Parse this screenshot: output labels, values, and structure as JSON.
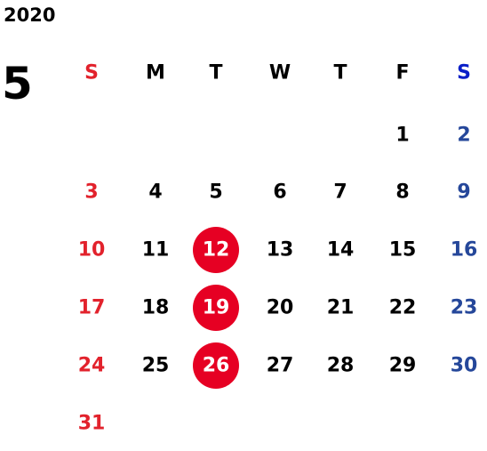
{
  "calendar": {
    "year": "2020",
    "month": "5",
    "weekdays": [
      "S",
      "M",
      "T",
      "W",
      "T",
      "F",
      "S"
    ],
    "sunday_color": "#e2222c",
    "saturday_header_color": "#0a1fc8",
    "saturday_color": "#25479a",
    "weekday_color": "#000000",
    "circle_color": "#e60023",
    "weeks": [
      [
        null,
        null,
        null,
        null,
        null,
        {
          "day": 1
        },
        {
          "day": 2
        }
      ],
      [
        {
          "day": 3
        },
        {
          "day": 4
        },
        {
          "day": 5
        },
        {
          "day": 6
        },
        {
          "day": 7
        },
        {
          "day": 8
        },
        {
          "day": 9
        }
      ],
      [
        {
          "day": 10
        },
        {
          "day": 11
        },
        {
          "day": 12,
          "circled": true
        },
        {
          "day": 13
        },
        {
          "day": 14
        },
        {
          "day": 15
        },
        {
          "day": 16
        }
      ],
      [
        {
          "day": 17
        },
        {
          "day": 18
        },
        {
          "day": 19,
          "circled": true
        },
        {
          "day": 20
        },
        {
          "day": 21
        },
        {
          "day": 22
        },
        {
          "day": 23
        }
      ],
      [
        {
          "day": 24
        },
        {
          "day": 25
        },
        {
          "day": 26,
          "circled": true
        },
        {
          "day": 27
        },
        {
          "day": 28
        },
        {
          "day": 29
        },
        {
          "day": 30
        }
      ],
      [
        {
          "day": 31
        },
        null,
        null,
        null,
        null,
        null,
        null
      ]
    ]
  }
}
